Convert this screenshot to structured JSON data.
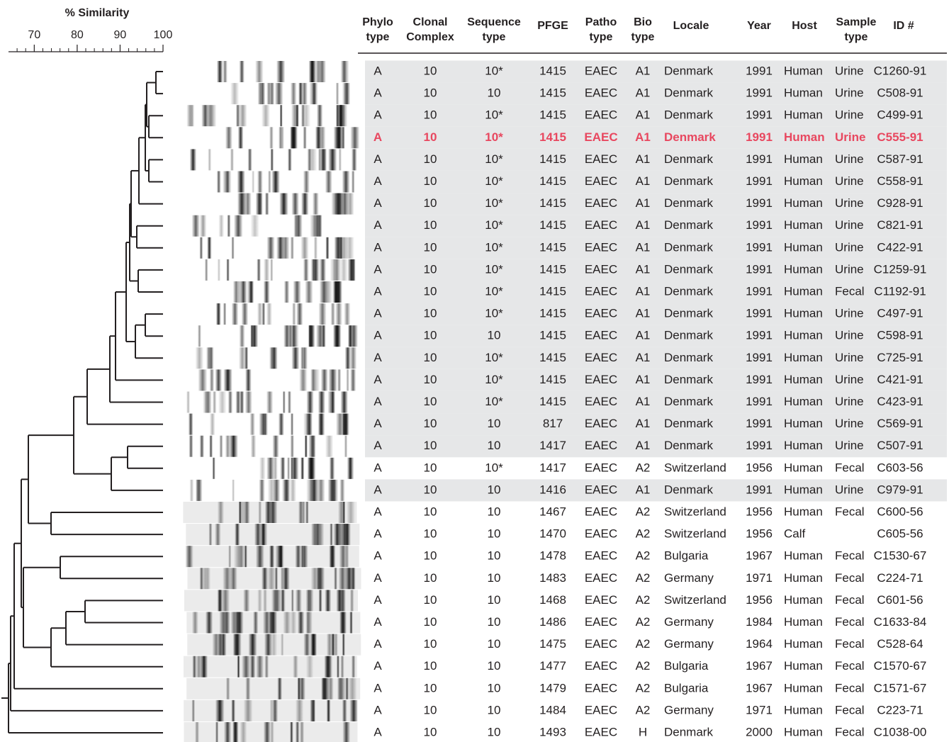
{
  "scale": {
    "title": "% Similarity",
    "xlim": [
      64,
      100
    ],
    "xticks": [
      70,
      80,
      90,
      100
    ],
    "minor_xticks": [
      66,
      68,
      72,
      74,
      76,
      78,
      82,
      84,
      86,
      88,
      92,
      94,
      96,
      98
    ]
  },
  "table": {
    "columns": [
      [
        "Phylo",
        "type"
      ],
      [
        "Clonal",
        "Complex"
      ],
      [
        "Sequence",
        "type"
      ],
      [
        "PFGE"
      ],
      [
        "Patho",
        "type"
      ],
      [
        "Bio",
        "type"
      ],
      [
        "Locale"
      ],
      [
        "Year"
      ],
      [
        "Host"
      ],
      [
        "Sample",
        "type"
      ],
      [
        "ID #"
      ]
    ],
    "highlight_row": 3,
    "shaded_rows": [
      0,
      1,
      2,
      3,
      4,
      5,
      6,
      7,
      8,
      9,
      10,
      11,
      12,
      13,
      14,
      15,
      16,
      17,
      19
    ],
    "rows": [
      [
        "A",
        "10",
        "10*",
        "1415",
        "EAEC",
        "A1",
        "Denmark",
        "1991",
        "Human",
        "Urine",
        "C1260-91"
      ],
      [
        "A",
        "10",
        "10",
        "1415",
        "EAEC",
        "A1",
        "Denmark",
        "1991",
        "Human",
        "Urine",
        "C508-91"
      ],
      [
        "A",
        "10",
        "10*",
        "1415",
        "EAEC",
        "A1",
        "Denmark",
        "1991",
        "Human",
        "Urine",
        "C499-91"
      ],
      [
        "A",
        "10",
        "10*",
        "1415",
        "EAEC",
        "A1",
        "Denmark",
        "1991",
        "Human",
        "Urine",
        "C555-91"
      ],
      [
        "A",
        "10",
        "10*",
        "1415",
        "EAEC",
        "A1",
        "Denmark",
        "1991",
        "Human",
        "Urine",
        "C587-91"
      ],
      [
        "A",
        "10",
        "10*",
        "1415",
        "EAEC",
        "A1",
        "Denmark",
        "1991",
        "Human",
        "Urine",
        "C558-91"
      ],
      [
        "A",
        "10",
        "10*",
        "1415",
        "EAEC",
        "A1",
        "Denmark",
        "1991",
        "Human",
        "Urine",
        "C928-91"
      ],
      [
        "A",
        "10",
        "10*",
        "1415",
        "EAEC",
        "A1",
        "Denmark",
        "1991",
        "Human",
        "Urine",
        "C821-91"
      ],
      [
        "A",
        "10",
        "10*",
        "1415",
        "EAEC",
        "A1",
        "Denmark",
        "1991",
        "Human",
        "Urine",
        "C422-91"
      ],
      [
        "A",
        "10",
        "10*",
        "1415",
        "EAEC",
        "A1",
        "Denmark",
        "1991",
        "Human",
        "Urine",
        "C1259-91"
      ],
      [
        "A",
        "10",
        "10*",
        "1415",
        "EAEC",
        "A1",
        "Denmark",
        "1991",
        "Human",
        "Fecal",
        "C1192-91"
      ],
      [
        "A",
        "10",
        "10*",
        "1415",
        "EAEC",
        "A1",
        "Denmark",
        "1991",
        "Human",
        "Urine",
        "C497-91"
      ],
      [
        "A",
        "10",
        "10",
        "1415",
        "EAEC",
        "A1",
        "Denmark",
        "1991",
        "Human",
        "Urine",
        "C598-91"
      ],
      [
        "A",
        "10",
        "10*",
        "1415",
        "EAEC",
        "A1",
        "Denmark",
        "1991",
        "Human",
        "Urine",
        "C725-91"
      ],
      [
        "A",
        "10",
        "10*",
        "1415",
        "EAEC",
        "A1",
        "Denmark",
        "1991",
        "Human",
        "Urine",
        "C421-91"
      ],
      [
        "A",
        "10",
        "10*",
        "1415",
        "EAEC",
        "A1",
        "Denmark",
        "1991",
        "Human",
        "Urine",
        "C423-91"
      ],
      [
        "A",
        "10",
        "10",
        "817",
        "EAEC",
        "A1",
        "Denmark",
        "1991",
        "Human",
        "Urine",
        "C569-91"
      ],
      [
        "A",
        "10",
        "10",
        "1417",
        "EAEC",
        "A1",
        "Denmark",
        "1991",
        "Human",
        "Urine",
        "C507-91"
      ],
      [
        "A",
        "10",
        "10*",
        "1417",
        "EAEC",
        "A2",
        "Switzerland",
        "1956",
        "Human",
        "Fecal",
        "C603-56"
      ],
      [
        "A",
        "10",
        "10",
        "1416",
        "EAEC",
        "A1",
        "Denmark",
        "1991",
        "Human",
        "Urine",
        "C979-91"
      ],
      [
        "A",
        "10",
        "10",
        "1467",
        "EAEC",
        "A2",
        "Switzerland",
        "1956",
        "Human",
        "Fecal",
        "C600-56"
      ],
      [
        "A",
        "10",
        "10",
        "1470",
        "EAEC",
        "A2",
        "Switzerland",
        "1956",
        "Calf",
        null,
        "C605-56"
      ],
      [
        "A",
        "10",
        "10",
        "1478",
        "EAEC",
        "A2",
        "Bulgaria",
        "1967",
        "Human",
        "Fecal",
        "C1530-67"
      ],
      [
        "A",
        "10",
        "10",
        "1483",
        "EAEC",
        "A2",
        "Germany",
        "1971",
        "Human",
        "Fecal",
        "C224-71"
      ],
      [
        "A",
        "10",
        "10",
        "1468",
        "EAEC",
        "A2",
        "Switzerland",
        "1956",
        "Human",
        "Fecal",
        "C601-56"
      ],
      [
        "A",
        "10",
        "10",
        "1486",
        "EAEC",
        "A2",
        "Germany",
        "1984",
        "Human",
        "Fecal",
        "C1633-84"
      ],
      [
        "A",
        "10",
        "10",
        "1475",
        "EAEC",
        "A2",
        "Germany",
        "1964",
        "Human",
        "Fecal",
        "C528-64"
      ],
      [
        "A",
        "10",
        "10",
        "1477",
        "EAEC",
        "A2",
        "Bulgaria",
        "1967",
        "Human",
        "Fecal",
        "C1570-67"
      ],
      [
        "A",
        "10",
        "10",
        "1479",
        "EAEC",
        "A2",
        "Bulgaria",
        "1967",
        "Human",
        "Fecal",
        "C1571-67"
      ],
      [
        "A",
        "10",
        "10",
        "1484",
        "EAEC",
        "A2",
        "Germany",
        "1971",
        "Human",
        "Fecal",
        "C223-71"
      ],
      [
        "A",
        "10",
        "10",
        "1493",
        "EAEC",
        "H",
        "Denmark",
        "2000",
        "Human",
        "Fecal",
        "C1038-00"
      ]
    ]
  }
}
